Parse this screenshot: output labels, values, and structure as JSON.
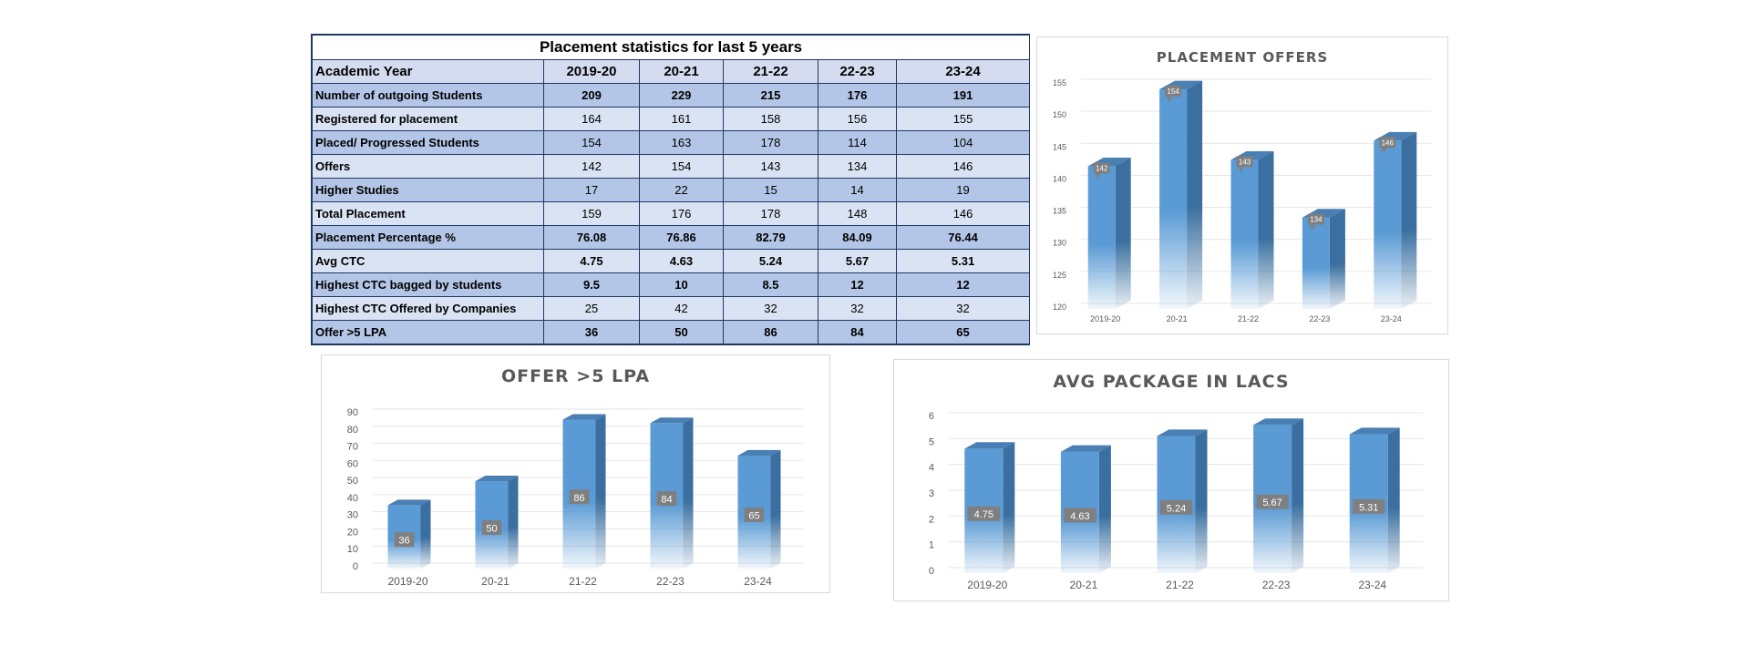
{
  "table": {
    "title": "Placement statistics for last 5 years",
    "header_label": "Academic Year",
    "years": [
      "2019-20",
      "20-21",
      "21-22",
      "22-23",
      "23-24"
    ],
    "rows": [
      {
        "label": "Number of outgoing Students",
        "values": [
          "209",
          "229",
          "215",
          "176",
          "191"
        ],
        "bold": true
      },
      {
        "label": "Registered for placement",
        "values": [
          "164",
          "161",
          "158",
          "156",
          "155"
        ],
        "bold": false
      },
      {
        "label": "Placed/ Progressed  Students",
        "values": [
          "154",
          "163",
          "178",
          "114",
          "104"
        ],
        "bold": false
      },
      {
        "label": "Offers",
        "values": [
          "142",
          "154",
          "143",
          "134",
          "146"
        ],
        "bold": false
      },
      {
        "label": "Higher Studies",
        "values": [
          "17",
          "22",
          "15",
          "14",
          "19"
        ],
        "bold": false
      },
      {
        "label": "Total Placement",
        "values": [
          "159",
          "176",
          "178",
          "148",
          "146"
        ],
        "bold": false
      },
      {
        "label": "Placement Percentage %",
        "values": [
          "76.08",
          "76.86",
          "82.79",
          "84.09",
          "76.44"
        ],
        "bold": true
      },
      {
        "label": "Avg CTC",
        "values": [
          "4.75",
          "4.63",
          "5.24",
          "5.67",
          "5.31"
        ],
        "bold": true
      },
      {
        "label": "Highest CTC bagged by students",
        "values": [
          "9.5",
          "10",
          "8.5",
          "12",
          "12"
        ],
        "bold": true
      },
      {
        "label": "Highest CTC Offered by Companies",
        "values": [
          "25",
          "42",
          "32",
          "32",
          "32"
        ],
        "bold": false
      },
      {
        "label": "Offer >5 LPA",
        "values": [
          "36",
          "50",
          "86",
          "84",
          "65"
        ],
        "bold": true
      }
    ]
  },
  "colors": {
    "bar_front": "#5b9bd5",
    "bar_side": "#3a6f9f",
    "bar_top": "#4a7fb3",
    "grid": "#e6e6e6",
    "label_box": "#7f7f7f",
    "text": "#595959"
  },
  "chart_data": [
    {
      "id": "offers",
      "type": "bar",
      "title": "PLACEMENT OFFERS",
      "categories": [
        "2019-20",
        "20-21",
        "21-22",
        "22-23",
        "23-24"
      ],
      "values": [
        142,
        154,
        143,
        134,
        146
      ],
      "ylim": [
        120,
        155
      ],
      "yticks": [
        120,
        125,
        130,
        135,
        140,
        145,
        150,
        155
      ],
      "data_label_style": "callout",
      "three_d": true,
      "grid": true
    },
    {
      "id": "lpa",
      "type": "bar",
      "title": "OFFER >5 LPA",
      "categories": [
        "2019-20",
        "20-21",
        "21-22",
        "22-23",
        "23-24"
      ],
      "values": [
        36,
        50,
        86,
        84,
        65
      ],
      "ylim": [
        0,
        90
      ],
      "yticks": [
        0,
        10,
        20,
        30,
        40,
        50,
        60,
        70,
        80,
        90
      ],
      "data_label_style": "inside",
      "three_d": true,
      "grid": true
    },
    {
      "id": "avg",
      "type": "bar",
      "title": "AVG PACKAGE IN LACS",
      "categories": [
        "2019-20",
        "20-21",
        "21-22",
        "22-23",
        "23-24"
      ],
      "values": [
        4.75,
        4.63,
        5.24,
        5.67,
        5.31
      ],
      "ylim": [
        0,
        6
      ],
      "yticks": [
        0,
        1,
        2,
        3,
        4,
        5,
        6
      ],
      "data_label_style": "inside",
      "three_d": true,
      "grid": true
    }
  ]
}
